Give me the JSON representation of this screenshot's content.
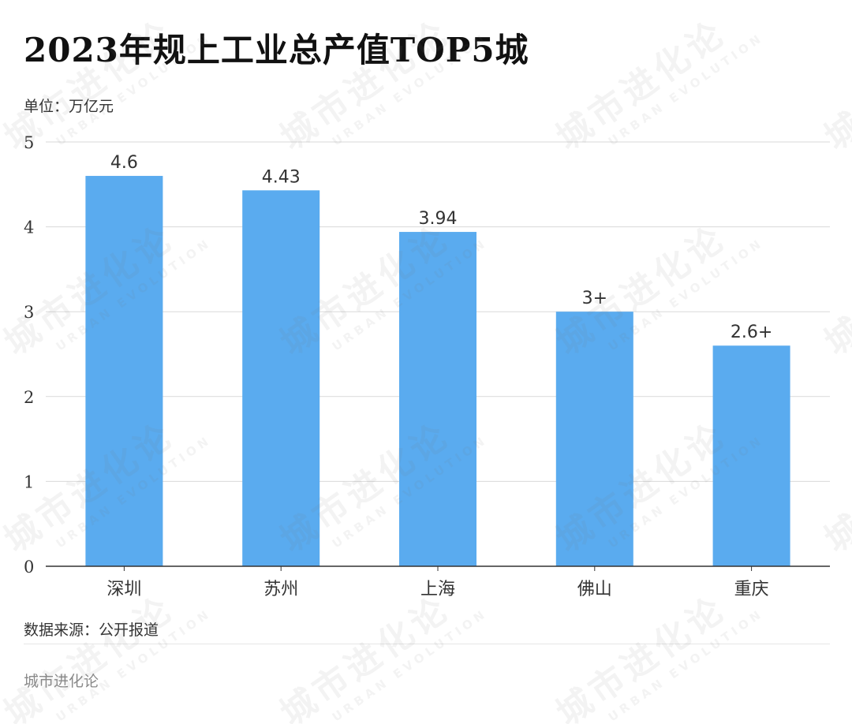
{
  "title": "2023年规上工业总产值TOP5城",
  "unit_label": "单位：万亿元",
  "source_label": "数据来源：公开报道",
  "brand": "城市进化论",
  "watermark": {
    "main": "城市进化论",
    "sub": "URBAN EVOLUTION"
  },
  "colors": {
    "bar": "#5aabef",
    "grid": "#d9d9d9",
    "axis": "#333333",
    "text": "#333333"
  },
  "chart_data": {
    "type": "bar",
    "categories": [
      "深圳",
      "苏州",
      "上海",
      "佛山",
      "重庆"
    ],
    "values": [
      4.6,
      4.43,
      3.94,
      3.0,
      2.6
    ],
    "data_labels": [
      "4.6",
      "4.43",
      "3.94",
      "3+",
      "2.6+"
    ],
    "yticks": [
      "0",
      "1",
      "2",
      "3",
      "4",
      "5"
    ],
    "ylim": [
      0,
      5
    ],
    "grid": true,
    "title": "2023年规上工业总产值TOP5城",
    "ylabel": "单位：万亿元",
    "xlabel": ""
  }
}
